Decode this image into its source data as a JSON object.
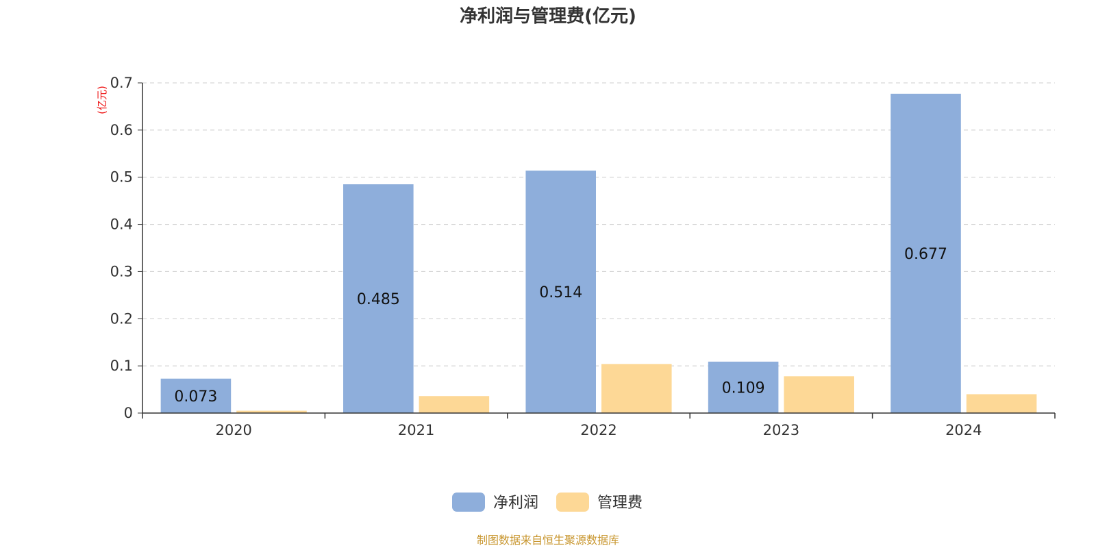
{
  "chart_data": {
    "type": "bar",
    "title": "净利润与管理费(亿元)",
    "ylabel": "(亿元)",
    "xlabel": "",
    "categories": [
      "2020",
      "2021",
      "2022",
      "2023",
      "2024"
    ],
    "ylim": [
      0,
      0.7
    ],
    "yticks": [
      "0",
      "0.1",
      "0.2",
      "0.3",
      "0.4",
      "0.5",
      "0.6",
      "0.7"
    ],
    "grid": true,
    "legend_position": "bottom-center",
    "series": [
      {
        "name": "净利润",
        "values": [
          0.073,
          0.485,
          0.514,
          0.109,
          0.677
        ],
        "labels": [
          "0.073",
          "0.485",
          "0.514",
          "0.109",
          "0.677"
        ],
        "color": "#8eaedb"
      },
      {
        "name": "管理费",
        "values": [
          0.005,
          0.036,
          0.104,
          0.078,
          0.04
        ],
        "color": "#fdd896"
      }
    ]
  },
  "source": "制图数据来自恒生聚源数据库",
  "colors": {
    "grid": "#cccccc",
    "axis": "#333333",
    "unit": "#ee1111",
    "source": "#c8962e"
  }
}
